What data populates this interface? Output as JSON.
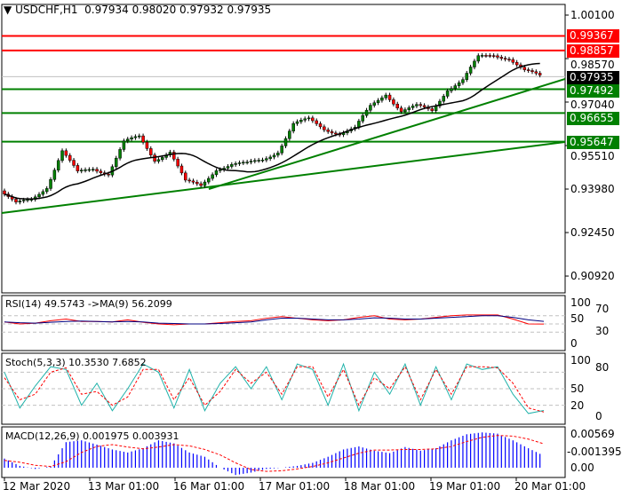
{
  "header": {
    "symbol": "USDCHF,H1",
    "open": "0.97934",
    "high": "0.98020",
    "low": "0.97932",
    "close": "0.97935"
  },
  "price_axis": [
    "1.00100",
    "0.98570",
    "0.97040",
    "0.95510",
    "0.93980",
    "0.92450",
    "0.90920"
  ],
  "levels": [
    {
      "value": "0.99367",
      "color": "#ff0000"
    },
    {
      "value": "0.98857",
      "color": "#ff0000"
    },
    {
      "value": "0.97492",
      "color": "#008000"
    },
    {
      "value": "0.96655",
      "color": "#008000"
    },
    {
      "value": "0.95647",
      "color": "#008000"
    }
  ],
  "current_price": {
    "value": "0.97935",
    "color": "#000000"
  },
  "time_axis": [
    "12 Mar 2020",
    "13 Mar 01:00",
    "16 Mar 01:00",
    "17 Mar 01:00",
    "18 Mar 01:00",
    "19 Mar 01:00",
    "20 Mar 01:00"
  ],
  "rsi": {
    "label": "RSI(14) 49.5743  ->MA(9) 56.2099",
    "axis": [
      "100",
      "70",
      "50",
      "30",
      "0"
    ],
    "colors": {
      "rsi": "#ff0000",
      "ma": "#000080"
    }
  },
  "stoch": {
    "label": "Stoch(5,3,3) 10.3530 7.6852",
    "axis": [
      "100",
      "80",
      "50",
      "20",
      "0"
    ],
    "colors": {
      "main": "#20b2aa",
      "signal": "#ff0000"
    }
  },
  "macd": {
    "label": "MACD(12,26,9) 0.001975 0.003931",
    "axis": [
      "0.00569",
      "0.00",
      "-0.001395"
    ],
    "colors": {
      "hist": "#0000ff",
      "signal": "#ff0000"
    }
  },
  "chart_data": {
    "type": "candlestick",
    "closes": [
      0.93918,
      0.9345,
      0.93606,
      0.94074,
      0.95323,
      0.94543,
      0.94699,
      0.94543,
      0.95635,
      0.95792,
      0.95011,
      0.95323,
      0.9423,
      0.94074,
      0.94699,
      0.94855,
      0.94855,
      0.95011,
      0.95323,
      0.9626,
      0.96416,
      0.96104,
      0.95948,
      0.96104,
      0.96884,
      0.97353,
      0.96728,
      0.96884,
      0.96728,
      0.97509,
      0.97821,
      0.98601,
      0.98695,
      0.98601,
      0.98133,
      0.97935
    ],
    "rsi": [
      55,
      50,
      52,
      58,
      62,
      56,
      56,
      55,
      60,
      54,
      50,
      48,
      50,
      50,
      53,
      56,
      58,
      64,
      68,
      64,
      60,
      58,
      60,
      66,
      70,
      62,
      60,
      62,
      66,
      70,
      72,
      72,
      72,
      62,
      50,
      49.6
    ],
    "rsi_ma": [
      55,
      53,
      52,
      54,
      56,
      57,
      56,
      55,
      56,
      55,
      52,
      51,
      50,
      50,
      51,
      53,
      55,
      60,
      64,
      64,
      62,
      60,
      60,
      62,
      65,
      64,
      62,
      62,
      64,
      66,
      68,
      70,
      70,
      66,
      60,
      56.2
    ],
    "stoch": [
      80,
      15,
      55,
      90,
      85,
      20,
      60,
      10,
      50,
      95,
      80,
      15,
      85,
      10,
      60,
      90,
      50,
      90,
      30,
      95,
      85,
      20,
      95,
      10,
      80,
      40,
      95,
      20,
      90,
      30,
      95,
      85,
      90,
      40,
      5,
      10.4
    ],
    "stoch_signal": [
      70,
      30,
      40,
      80,
      88,
      40,
      45,
      20,
      35,
      85,
      85,
      30,
      70,
      20,
      45,
      85,
      60,
      80,
      40,
      90,
      90,
      35,
      85,
      20,
      70,
      50,
      90,
      30,
      85,
      40,
      90,
      90,
      88,
      60,
      15,
      7.7
    ],
    "macd_hist": [
      0.0015,
      0.0003,
      -0.0002,
      0.0002,
      0.0042,
      0.0045,
      0.0038,
      0.003,
      0.0025,
      0.0032,
      0.0045,
      0.004,
      0.0025,
      0.0018,
      0.0,
      -0.0012,
      -0.0008,
      -0.0002,
      0.0,
      0.0003,
      0.0008,
      0.0018,
      0.003,
      0.0035,
      0.0028,
      0.0024,
      0.0034,
      0.0028,
      0.0032,
      0.0045,
      0.0055,
      0.0058,
      0.0056,
      0.0045,
      0.0032,
      0.00198
    ],
    "macd_signal": [
      0.0012,
      0.0009,
      0.0004,
      0.0002,
      0.001,
      0.0025,
      0.0035,
      0.0038,
      0.0034,
      0.0031,
      0.0034,
      0.0038,
      0.0036,
      0.003,
      0.0021,
      0.0008,
      -0.0003,
      -0.0006,
      -0.0005,
      -0.0002,
      0.0002,
      0.0008,
      0.0016,
      0.0024,
      0.0029,
      0.0029,
      0.003,
      0.003,
      0.0031,
      0.0035,
      0.0043,
      0.005,
      0.0053,
      0.0052,
      0.0047,
      0.00393
    ],
    "ylim": [
      0.9045,
      1.005
    ]
  }
}
